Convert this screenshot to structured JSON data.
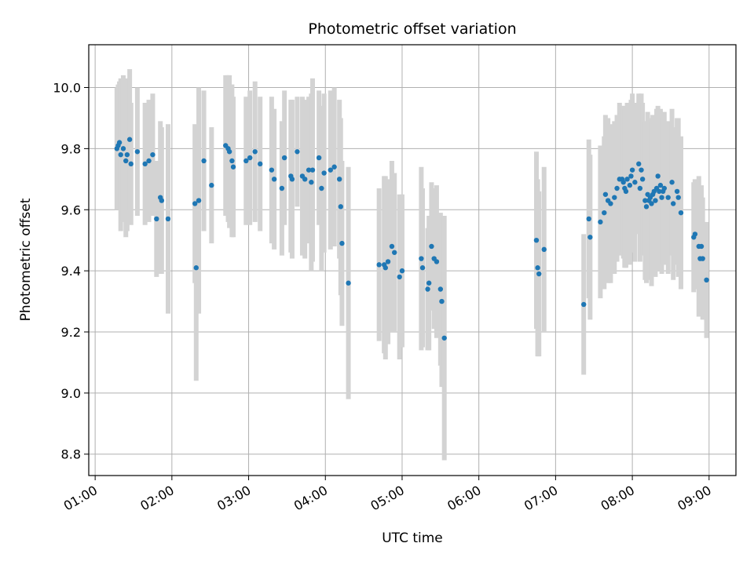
{
  "chart_data": {
    "type": "scatter",
    "title": "Photometric offset variation",
    "xlabel": "UTC time",
    "ylabel": "Photometric offset",
    "x_unit": "hours UTC",
    "xlim": [
      "00:55",
      "09:21"
    ],
    "ylim": [
      8.73,
      10.14
    ],
    "grid": true,
    "x_ticks": [
      "01:00",
      "02:00",
      "03:00",
      "04:00",
      "05:00",
      "06:00",
      "07:00",
      "08:00",
      "09:00"
    ],
    "y_ticks": [
      "8.8",
      "9.0",
      "9.2",
      "9.4",
      "9.6",
      "9.8",
      "10.0"
    ],
    "colors": {
      "point": "#1f77b4",
      "errorbar": "#d3d3d3",
      "grid": "#b0b0b0"
    },
    "points": [
      {
        "t": "01:17",
        "y": 9.8,
        "err": 0.2
      },
      {
        "t": "01:18",
        "y": 9.81,
        "err": 0.2
      },
      {
        "t": "01:19",
        "y": 9.82,
        "err": 0.2
      },
      {
        "t": "01:20",
        "y": 9.78,
        "err": 0.25
      },
      {
        "t": "01:22",
        "y": 9.8,
        "err": 0.24
      },
      {
        "t": "01:24",
        "y": 9.76,
        "err": 0.25
      },
      {
        "t": "01:25",
        "y": 9.78,
        "err": 0.25
      },
      {
        "t": "01:27",
        "y": 9.83,
        "err": 0.23
      },
      {
        "t": "01:28",
        "y": 9.75,
        "err": 0.2
      },
      {
        "t": "01:33",
        "y": 9.79,
        "err": 0.21
      },
      {
        "t": "01:39",
        "y": 9.75,
        "err": 0.2
      },
      {
        "t": "01:42",
        "y": 9.76,
        "err": 0.2
      },
      {
        "t": "01:45",
        "y": 9.78,
        "err": 0.2
      },
      {
        "t": "01:48",
        "y": 9.57,
        "err": 0.19
      },
      {
        "t": "01:51",
        "y": 9.64,
        "err": 0.25
      },
      {
        "t": "01:52",
        "y": 9.63,
        "err": 0.24
      },
      {
        "t": "01:57",
        "y": 9.57,
        "err": 0.31
      },
      {
        "t": "02:18",
        "y": 9.62,
        "err": 0.26
      },
      {
        "t": "02:19",
        "y": 9.41,
        "err": 0.37
      },
      {
        "t": "02:21",
        "y": 9.63,
        "err": 0.37
      },
      {
        "t": "02:25",
        "y": 9.76,
        "err": 0.23
      },
      {
        "t": "02:31",
        "y": 9.68,
        "err": 0.19
      },
      {
        "t": "02:42",
        "y": 9.81,
        "err": 0.23
      },
      {
        "t": "02:44",
        "y": 9.8,
        "err": 0.24
      },
      {
        "t": "02:45",
        "y": 9.79,
        "err": 0.25
      },
      {
        "t": "02:47",
        "y": 9.76,
        "err": 0.25
      },
      {
        "t": "02:48",
        "y": 9.74,
        "err": 0.23
      },
      {
        "t": "02:58",
        "y": 9.76,
        "err": 0.21
      },
      {
        "t": "03:01",
        "y": 9.77,
        "err": 0.22
      },
      {
        "t": "03:05",
        "y": 9.79,
        "err": 0.23
      },
      {
        "t": "03:09",
        "y": 9.75,
        "err": 0.22
      },
      {
        "t": "03:18",
        "y": 9.73,
        "err": 0.24
      },
      {
        "t": "03:20",
        "y": 9.7,
        "err": 0.23
      },
      {
        "t": "03:26",
        "y": 9.67,
        "err": 0.22
      },
      {
        "t": "03:28",
        "y": 9.77,
        "err": 0.22
      },
      {
        "t": "03:33",
        "y": 9.71,
        "err": 0.25
      },
      {
        "t": "03:34",
        "y": 9.7,
        "err": 0.26
      },
      {
        "t": "03:38",
        "y": 9.79,
        "err": 0.18
      },
      {
        "t": "03:42",
        "y": 9.71,
        "err": 0.26
      },
      {
        "t": "03:44",
        "y": 9.7,
        "err": 0.26
      },
      {
        "t": "03:47",
        "y": 9.73,
        "err": 0.24
      },
      {
        "t": "03:49",
        "y": 9.69,
        "err": 0.29
      },
      {
        "t": "03:50",
        "y": 9.73,
        "err": 0.3
      },
      {
        "t": "03:55",
        "y": 9.77,
        "err": 0.22
      },
      {
        "t": "03:57",
        "y": 9.67,
        "err": 0.27
      },
      {
        "t": "03:59",
        "y": 9.72,
        "err": 0.26
      },
      {
        "t": "04:04",
        "y": 9.73,
        "err": 0.26
      },
      {
        "t": "04:07",
        "y": 9.74,
        "err": 0.26
      },
      {
        "t": "04:11",
        "y": 9.7,
        "err": 0.26
      },
      {
        "t": "04:12",
        "y": 9.61,
        "err": 0.29
      },
      {
        "t": "04:13",
        "y": 9.49,
        "err": 0.27
      },
      {
        "t": "04:18",
        "y": 9.36,
        "err": 0.38
      },
      {
        "t": "04:42",
        "y": 9.42,
        "err": 0.25
      },
      {
        "t": "04:46",
        "y": 9.42,
        "err": 0.29
      },
      {
        "t": "04:47",
        "y": 9.41,
        "err": 0.3
      },
      {
        "t": "04:49",
        "y": 9.43,
        "err": 0.27
      },
      {
        "t": "04:52",
        "y": 9.48,
        "err": 0.28
      },
      {
        "t": "04:54",
        "y": 9.46,
        "err": 0.26
      },
      {
        "t": "04:58",
        "y": 9.38,
        "err": 0.27
      },
      {
        "t": "05:00",
        "y": 9.4,
        "err": 0.25
      },
      {
        "t": "05:15",
        "y": 9.44,
        "err": 0.3
      },
      {
        "t": "05:16",
        "y": 9.41,
        "err": 0.26
      },
      {
        "t": "05:20",
        "y": 9.34,
        "err": 0.2
      },
      {
        "t": "05:21",
        "y": 9.36,
        "err": 0.22
      },
      {
        "t": "05:23",
        "y": 9.48,
        "err": 0.21
      },
      {
        "t": "05:25",
        "y": 9.44,
        "err": 0.23
      },
      {
        "t": "05:27",
        "y": 9.43,
        "err": 0.25
      },
      {
        "t": "05:30",
        "y": 9.34,
        "err": 0.25
      },
      {
        "t": "05:31",
        "y": 9.3,
        "err": 0.28
      },
      {
        "t": "05:33",
        "y": 9.18,
        "err": 0.4
      },
      {
        "t": "06:45",
        "y": 9.5,
        "err": 0.29
      },
      {
        "t": "06:46",
        "y": 9.41,
        "err": 0.29
      },
      {
        "t": "06:47",
        "y": 9.39,
        "err": 0.27
      },
      {
        "t": "06:51",
        "y": 9.47,
        "err": 0.27
      },
      {
        "t": "07:22",
        "y": 9.29,
        "err": 0.23
      },
      {
        "t": "07:26",
        "y": 9.57,
        "err": 0.26
      },
      {
        "t": "07:27",
        "y": 9.51,
        "err": 0.27
      },
      {
        "t": "07:35",
        "y": 9.56,
        "err": 0.25
      },
      {
        "t": "07:38",
        "y": 9.59,
        "err": 0.25
      },
      {
        "t": "07:39",
        "y": 9.65,
        "err": 0.26
      },
      {
        "t": "07:41",
        "y": 9.63,
        "err": 0.27
      },
      {
        "t": "07:43",
        "y": 9.62,
        "err": 0.26
      },
      {
        "t": "07:46",
        "y": 9.64,
        "err": 0.25
      },
      {
        "t": "07:48",
        "y": 9.67,
        "err": 0.24
      },
      {
        "t": "07:50",
        "y": 9.7,
        "err": 0.25
      },
      {
        "t": "07:52",
        "y": 9.7,
        "err": 0.24
      },
      {
        "t": "07:53",
        "y": 9.69,
        "err": 0.25
      },
      {
        "t": "07:54",
        "y": 9.67,
        "err": 0.26
      },
      {
        "t": "07:55",
        "y": 9.66,
        "err": 0.25
      },
      {
        "t": "07:56",
        "y": 9.7,
        "err": 0.25
      },
      {
        "t": "07:58",
        "y": 9.68,
        "err": 0.26
      },
      {
        "t": "07:59",
        "y": 9.71,
        "err": 0.25
      },
      {
        "t": "08:00",
        "y": 9.73,
        "err": 0.25
      },
      {
        "t": "08:02",
        "y": 9.69,
        "err": 0.26
      },
      {
        "t": "08:05",
        "y": 9.75,
        "err": 0.23
      },
      {
        "t": "08:06",
        "y": 9.67,
        "err": 0.24
      },
      {
        "t": "08:07",
        "y": 9.73,
        "err": 0.25
      },
      {
        "t": "08:08",
        "y": 9.7,
        "err": 0.25
      },
      {
        "t": "08:10",
        "y": 9.63,
        "err": 0.26
      },
      {
        "t": "08:11",
        "y": 9.61,
        "err": 0.25
      },
      {
        "t": "08:12",
        "y": 9.65,
        "err": 0.27
      },
      {
        "t": "08:13",
        "y": 9.63,
        "err": 0.26
      },
      {
        "t": "08:14",
        "y": 9.64,
        "err": 0.26
      },
      {
        "t": "08:15",
        "y": 9.62,
        "err": 0.27
      },
      {
        "t": "08:16",
        "y": 9.65,
        "err": 0.26
      },
      {
        "t": "08:17",
        "y": 9.66,
        "err": 0.25
      },
      {
        "t": "08:18",
        "y": 9.63,
        "err": 0.25
      },
      {
        "t": "08:19",
        "y": 9.67,
        "err": 0.26
      },
      {
        "t": "08:20",
        "y": 9.71,
        "err": 0.23
      },
      {
        "t": "08:21",
        "y": 9.66,
        "err": 0.26
      },
      {
        "t": "08:22",
        "y": 9.68,
        "err": 0.25
      },
      {
        "t": "08:23",
        "y": 9.64,
        "err": 0.25
      },
      {
        "t": "08:24",
        "y": 9.66,
        "err": 0.24
      },
      {
        "t": "08:25",
        "y": 9.67,
        "err": 0.25
      },
      {
        "t": "08:28",
        "y": 9.64,
        "err": 0.25
      },
      {
        "t": "08:31",
        "y": 9.69,
        "err": 0.24
      },
      {
        "t": "08:32",
        "y": 9.62,
        "err": 0.25
      },
      {
        "t": "08:35",
        "y": 9.66,
        "err": 0.24
      },
      {
        "t": "08:36",
        "y": 9.64,
        "err": 0.26
      },
      {
        "t": "08:38",
        "y": 9.59,
        "err": 0.25
      },
      {
        "t": "08:48",
        "y": 9.51,
        "err": 0.18
      },
      {
        "t": "08:49",
        "y": 9.52,
        "err": 0.18
      },
      {
        "t": "08:52",
        "y": 9.48,
        "err": 0.23
      },
      {
        "t": "08:53",
        "y": 9.44,
        "err": 0.18
      },
      {
        "t": "08:54",
        "y": 9.48,
        "err": 0.2
      },
      {
        "t": "08:55",
        "y": 9.44,
        "err": 0.2
      },
      {
        "t": "08:58",
        "y": 9.37,
        "err": 0.19
      }
    ]
  }
}
